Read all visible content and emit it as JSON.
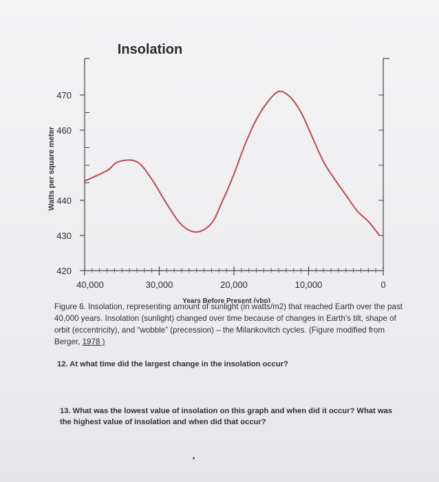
{
  "chart_data": {
    "type": "line",
    "title": "Insolation",
    "xlabel": "Years Before Present (ybp)",
    "ylabel": "Watts per square meter",
    "xlim": [
      40000,
      0
    ],
    "ylim": [
      420,
      475
    ],
    "x_ticks": [
      40000,
      30000,
      20000,
      10000,
      0
    ],
    "x_tick_labels": [
      "40,000",
      "30,000",
      "20,000",
      "10,000",
      "0"
    ],
    "y_ticks": [
      470,
      460,
      440,
      430,
      420
    ],
    "y_tick_labels": [
      "470",
      "460",
      "440",
      "430",
      "420"
    ],
    "grid": false,
    "legend": "none",
    "line_color": "#c0474f",
    "series": [
      {
        "x": [
          40000,
          37000,
          35500,
          33000,
          31000,
          29000,
          27000,
          25000,
          23000,
          21500,
          20000,
          18500,
          17000,
          15500,
          14000,
          12500,
          11000,
          9500,
          8000,
          6500,
          5000,
          3500,
          2000,
          500
        ],
        "values": [
          445.5,
          448.5,
          451,
          451,
          446,
          439,
          433,
          431,
          433.5,
          440,
          447.5,
          456,
          463,
          468,
          471,
          469.5,
          465,
          458,
          451,
          446,
          441.5,
          437,
          434,
          430
        ]
      }
    ]
  },
  "caption": {
    "text": "Figure 6. Insolation, representing amount of sunlight (in watts/m2) that reached Earth over the past 40,000 years. Insolation (sunlight) changed over time because of changes in Earth’s tilt, shape of orbit (eccentricity), and “wobble” (precession) – the Milankovitch cycles. (Figure modified from Berger, ",
    "link": "1978 )"
  },
  "questions": {
    "q12": "12. At what time did the largest change in the insolation occur?",
    "q13": "13. What was the lowest value of insolation on this graph and when did it occur? What was the highest value of insolation and when did that occur?"
  }
}
